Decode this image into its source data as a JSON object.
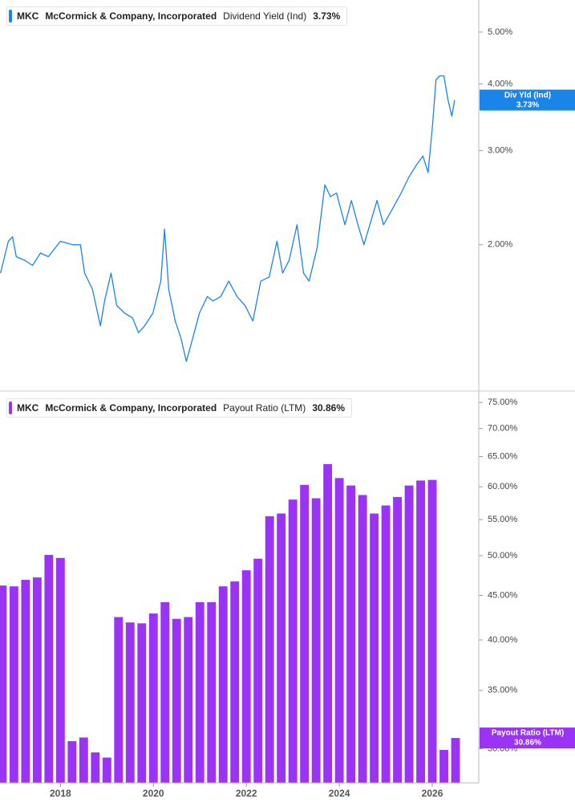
{
  "chart_data": [
    {
      "type": "line",
      "ticker": "MKC",
      "company": "McCormick & Company, Incorporated",
      "title": "Dividend Yield (Ind)",
      "current_label": "3.73%",
      "log_y": true,
      "xlim": [
        2016.7,
        2027.0
      ],
      "ylim": [
        1.065,
        5.74
      ],
      "yticks": [
        {
          "value": 2,
          "label": "2.00%"
        },
        {
          "value": 3,
          "label": "3.00%"
        },
        {
          "value": 4,
          "label": "4.00%"
        },
        {
          "value": 5,
          "label": "5.00%"
        }
      ],
      "series": [
        {
          "name": "Div Yld (Ind)",
          "color": "#1b84e8",
          "x": [
            2016.71,
            2016.88,
            2016.97,
            2017.05,
            2017.23,
            2017.4,
            2017.57,
            2017.74,
            2018.0,
            2018.26,
            2018.43,
            2018.52,
            2018.69,
            2018.86,
            2018.95,
            2019.09,
            2019.21,
            2019.38,
            2019.55,
            2019.68,
            2019.81,
            2019.99,
            2020.16,
            2020.24,
            2020.33,
            2020.47,
            2020.59,
            2020.71,
            2020.85,
            2020.99,
            2021.16,
            2021.28,
            2021.45,
            2021.62,
            2021.8,
            2021.97,
            2022.14,
            2022.31,
            2022.49,
            2022.66,
            2022.78,
            2022.92,
            2023.09,
            2023.23,
            2023.35,
            2023.52,
            2023.69,
            2023.81,
            2023.94,
            2024.12,
            2024.26,
            2024.4,
            2024.53,
            2024.81,
            2024.95,
            2025.15,
            2025.33,
            2025.5,
            2025.67,
            2025.8,
            2025.91,
            2026.0,
            2026.08,
            2026.16,
            2026.25,
            2026.34,
            2026.42,
            2026.48
          ],
          "values": [
            1.77,
            2.03,
            2.07,
            1.9,
            1.87,
            1.83,
            1.93,
            1.9,
            2.03,
            2.0,
            2.0,
            1.77,
            1.65,
            1.41,
            1.57,
            1.77,
            1.54,
            1.49,
            1.46,
            1.37,
            1.41,
            1.49,
            1.71,
            2.14,
            1.65,
            1.44,
            1.34,
            1.21,
            1.34,
            1.49,
            1.6,
            1.57,
            1.6,
            1.71,
            1.6,
            1.54,
            1.44,
            1.71,
            1.74,
            2.03,
            1.77,
            1.87,
            2.18,
            1.77,
            1.71,
            1.97,
            2.59,
            2.46,
            2.5,
            2.18,
            2.42,
            2.18,
            2.0,
            2.42,
            2.18,
            2.34,
            2.5,
            2.68,
            2.83,
            2.93,
            2.73,
            3.3,
            4.07,
            4.14,
            4.14,
            3.73,
            3.48,
            3.73
          ]
        }
      ]
    },
    {
      "type": "bar",
      "ticker": "MKC",
      "company": "McCormick & Company, Incorporated",
      "title": "Payout Ratio (LTM)",
      "current_label": "30.86%",
      "log_y": true,
      "xlim": [
        2016.7,
        2027.0
      ],
      "ylim": [
        27.4,
        77.3
      ],
      "xticks": [
        2018,
        2020,
        2022,
        2024,
        2026
      ],
      "yticks": [
        {
          "value": 30,
          "label": "30.00%"
        },
        {
          "value": 35,
          "label": "35.00%"
        },
        {
          "value": 40,
          "label": "40.00%"
        },
        {
          "value": 45,
          "label": "45.00%"
        },
        {
          "value": 50,
          "label": "50.00%"
        },
        {
          "value": 55,
          "label": "55.00%"
        },
        {
          "value": 60,
          "label": "60.00%"
        },
        {
          "value": 65,
          "label": "65.00%"
        },
        {
          "value": 70,
          "label": "70.00%"
        },
        {
          "value": 75,
          "label": "75.00%"
        }
      ],
      "series": [
        {
          "name": "Payout Ratio (LTM)",
          "color": "#9b32f7",
          "x": [
            2016.75,
            2017.0,
            2017.25,
            2017.5,
            2017.75,
            2018.0,
            2018.25,
            2018.5,
            2018.75,
            2019.0,
            2019.25,
            2019.5,
            2019.75,
            2020.0,
            2020.25,
            2020.5,
            2020.75,
            2021.0,
            2021.25,
            2021.5,
            2021.75,
            2022.0,
            2022.25,
            2022.5,
            2022.75,
            2023.0,
            2023.25,
            2023.5,
            2023.75,
            2024.0,
            2024.25,
            2024.5,
            2024.75,
            2025.0,
            2025.25,
            2025.5,
            2025.75,
            2026.0,
            2026.25,
            2026.5
          ],
          "values": [
            46.2,
            46.1,
            46.9,
            47.2,
            50.1,
            49.7,
            30.6,
            30.9,
            29.7,
            29.3,
            42.5,
            41.9,
            41.8,
            42.9,
            44.2,
            42.3,
            42.5,
            44.2,
            44.2,
            46.1,
            46.7,
            48.1,
            49.6,
            55.5,
            55.9,
            58.0,
            60.3,
            58.2,
            63.7,
            61.4,
            60.2,
            58.7,
            55.9,
            57.1,
            58.4,
            60.2,
            61.0,
            61.1,
            29.9,
            30.86
          ]
        }
      ]
    }
  ]
}
